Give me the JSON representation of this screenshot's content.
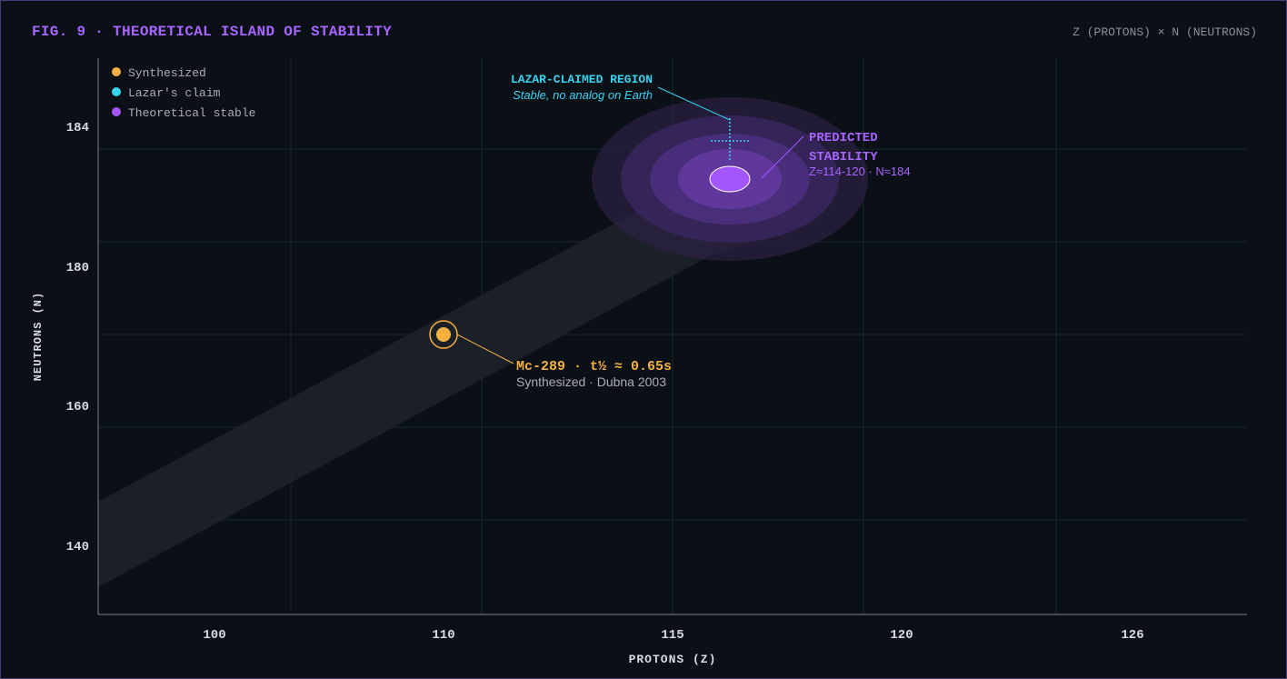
{
  "figure": {
    "title": "FIG. 9 · THEORETICAL ISLAND OF STABILITY",
    "axes_caption": "Z (PROTONS) × N (NEUTRONS)"
  },
  "colors": {
    "synthesized": "#f5b041",
    "lazar": "#38d3f0",
    "theoretical": "#a557ff",
    "axis_text": "#d8dbe2",
    "muted_text": "#9aa0a8",
    "grid": "#1b2c33"
  },
  "legend": {
    "items": [
      {
        "label": "Synthesized",
        "color": "#f5b041"
      },
      {
        "label": "Lazar's claim",
        "color": "#38d3f0"
      },
      {
        "label": "Theoretical stable",
        "color": "#a557ff"
      }
    ]
  },
  "chart_data": {
    "type": "scatter",
    "xlabel": "PROTONS (Z)",
    "ylabel": "NEUTRONS (N)",
    "x_ticks": [
      "100",
      "110",
      "115",
      "120",
      "126"
    ],
    "y_ticks": [
      "184",
      "180",
      "160",
      "140"
    ],
    "grid": true,
    "legend_position": "top-left",
    "series": [
      {
        "name": "Synthesized",
        "points": [
          {
            "label": "Mc-289",
            "z": 110,
            "n": 170
          }
        ]
      },
      {
        "name": "Lazar's claim",
        "points": [
          {
            "label": "LAZAR-CLAIMED REGION",
            "z": 115,
            "n": 184
          }
        ]
      },
      {
        "name": "Theoretical stable",
        "points": [
          {
            "label": "PREDICTED STABILITY",
            "z": 115,
            "n": 182
          }
        ]
      }
    ],
    "annotations": {
      "mc289_title": "Mc-289 · t½ ≈ 0.65s",
      "mc289_sub": "Synthesized · Dubna 2003",
      "lazar_title": "LAZAR-CLAIMED REGION",
      "lazar_sub": "Stable, no analog on Earth",
      "island_title_1": "PREDICTED",
      "island_title_2": "STABILITY",
      "island_sub": "Z≈114-120 · N≈184"
    }
  }
}
